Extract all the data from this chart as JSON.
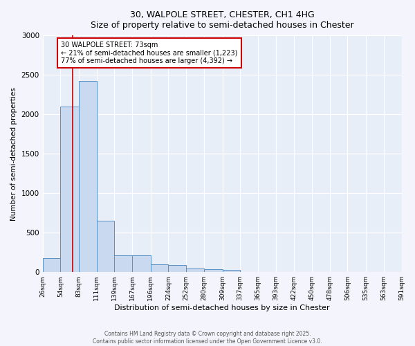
{
  "title_line1": "30, WALPOLE STREET, CHESTER, CH1 4HG",
  "title_line2": "Size of property relative to semi-detached houses in Chester",
  "xlabel": "Distribution of semi-detached houses by size in Chester",
  "ylabel": "Number of semi-detached properties",
  "annotation_title": "30 WALPOLE STREET: 73sqm",
  "annotation_line2": "← 21% of semi-detached houses are smaller (1,223)",
  "annotation_line3": "77% of semi-detached houses are larger (4,392) →",
  "footnote_line1": "Contains HM Land Registry data © Crown copyright and database right 2025.",
  "footnote_line2": "Contains public sector information licensed under the Open Government Licence v3.0.",
  "bar_color": "#c8d9f0",
  "bar_edge_color": "#5a8fc2",
  "red_line_color": "#cc0000",
  "annotation_box_edge_color": "#cc0000",
  "background_color": "#e8eef8",
  "fig_background_color": "#f4f4fc",
  "grid_color": "#ffffff",
  "property_size": 73,
  "bin_edges": [
    26,
    54,
    83,
    111,
    139,
    167,
    196,
    224,
    252,
    280,
    309,
    337,
    365,
    393,
    422,
    450,
    478,
    506,
    535,
    563,
    591
  ],
  "bar_heights": [
    175,
    2100,
    2420,
    650,
    215,
    215,
    95,
    90,
    50,
    40,
    25,
    0,
    0,
    0,
    0,
    0,
    0,
    0,
    0,
    0
  ],
  "ylim": [
    0,
    3000
  ],
  "yticks": [
    0,
    500,
    1000,
    1500,
    2000,
    2500,
    3000
  ]
}
